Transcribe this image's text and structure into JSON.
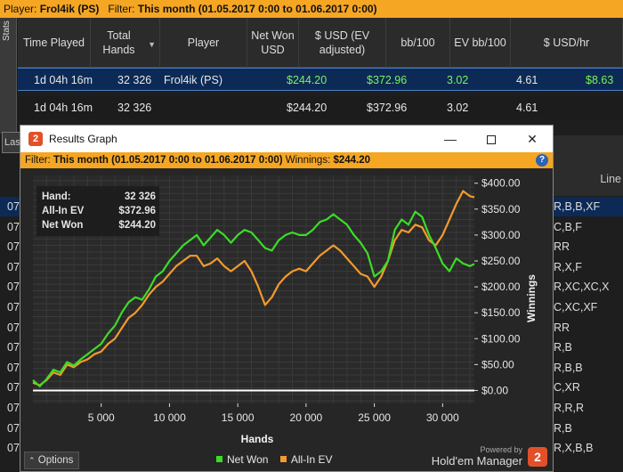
{
  "player_bar": {
    "player_label": "Player:",
    "player_name": "Frol4ik (PS)",
    "filter_label": "Filter:",
    "filter_value": "This month (01.05.2017 0:00 to 01.06.2017 0:00)"
  },
  "stats_tab_label": "Stats",
  "stats_table": {
    "headers": [
      "Time Played",
      "Total Hands",
      "Player",
      "Net Won USD",
      "$ USD (EV adjusted)",
      "bb/100",
      "EV bb/100",
      "$ USD/hr"
    ],
    "row1": [
      "1d 04h 16m",
      "32 326",
      "Frol4ik (PS)",
      "$244.20",
      "$372.96",
      "3.02",
      "4.61",
      "$8.63"
    ],
    "row2": [
      "1d 04h 16m",
      "32 326",
      "",
      "$244.20",
      "$372.96",
      "3.02",
      "4.61",
      ""
    ]
  },
  "left_tab_label": "Las",
  "background_table": {
    "header_right": "Line",
    "left_cells": [
      "07",
      "07",
      "07",
      "07",
      "07",
      "07",
      "07",
      "07",
      "07",
      "07",
      "07",
      "07",
      "07"
    ],
    "right_cells": [
      "R,B,B,XF",
      "C,B,F",
      "RR",
      "R,X,F",
      "R,XC,XC,X",
      "C,XC,XF",
      "RR",
      "R,B",
      "R,B,B",
      "C,XR",
      "R,R,R",
      "R,B",
      "R,X,B,B"
    ]
  },
  "results_window": {
    "title": "Results Graph",
    "filter_label": "Filter:",
    "filter_value": "This month (01.05.2017 0:00 to 01.06.2017 0:00)",
    "winnings_label": "Winnings:",
    "winnings_value": "$244.20",
    "stat_box": [
      {
        "label": "Hand:",
        "value": "32 326"
      },
      {
        "label": "All-In EV",
        "value": "$372.96"
      },
      {
        "label": "Net Won",
        "value": "$244.20"
      }
    ],
    "options_label": "Options",
    "powered_by": "Powered by",
    "brand_name": "Hold'em Manager",
    "brand_logo": "2"
  },
  "chart_data": {
    "type": "line",
    "title": "",
    "xlabel": "Hands",
    "ylabel": "Winnings",
    "xlim": [
      0,
      32326
    ],
    "ylim": [
      -25,
      415
    ],
    "x_ticks": [
      5000,
      10000,
      15000,
      20000,
      25000,
      30000
    ],
    "x_tick_labels": [
      "5 000",
      "10 000",
      "15 000",
      "20 000",
      "25 000",
      "30 000"
    ],
    "y_ticks": [
      0,
      50,
      100,
      150,
      200,
      250,
      300,
      350,
      400
    ],
    "y_tick_labels": [
      "$0.00",
      "$50.00",
      "$100.00",
      "$150.00",
      "$200.00",
      "$250.00",
      "$300.00",
      "$350.00",
      "$400.00"
    ],
    "grid": true,
    "legend": "bottom-center",
    "series": [
      {
        "name": "Net Won",
        "color": "#3cdc28",
        "x": [
          0,
          500,
          1000,
          1500,
          2000,
          2500,
          3000,
          3500,
          4000,
          4500,
          5000,
          5500,
          6000,
          6500,
          7000,
          7500,
          8000,
          8500,
          9000,
          9500,
          10000,
          10500,
          11000,
          11500,
          12000,
          12500,
          13000,
          13500,
          14000,
          14500,
          15000,
          15500,
          16000,
          16500,
          17000,
          17500,
          18000,
          18500,
          19000,
          19500,
          20000,
          20500,
          21000,
          21500,
          22000,
          22500,
          23000,
          23500,
          24000,
          24500,
          25000,
          25500,
          26000,
          26500,
          27000,
          27500,
          28000,
          28500,
          29000,
          29500,
          30000,
          30500,
          31000,
          31500,
          32000,
          32326
        ],
        "y": [
          20,
          8,
          22,
          40,
          35,
          55,
          48,
          60,
          70,
          80,
          90,
          110,
          125,
          150,
          170,
          180,
          175,
          195,
          220,
          230,
          250,
          265,
          280,
          290,
          300,
          280,
          295,
          310,
          300,
          285,
          300,
          310,
          305,
          290,
          275,
          270,
          290,
          300,
          305,
          300,
          300,
          310,
          325,
          330,
          340,
          330,
          320,
          300,
          285,
          265,
          220,
          230,
          250,
          310,
          330,
          320,
          345,
          335,
          300,
          275,
          245,
          230,
          255,
          245,
          240,
          244.2
        ]
      },
      {
        "name": "All-In EV",
        "color": "#f39a2c",
        "x": [
          0,
          500,
          1000,
          1500,
          2000,
          2500,
          3000,
          3500,
          4000,
          4500,
          5000,
          5500,
          6000,
          6500,
          7000,
          7500,
          8000,
          8500,
          9000,
          9500,
          10000,
          10500,
          11000,
          11500,
          12000,
          12500,
          13000,
          13500,
          14000,
          14500,
          15000,
          15500,
          16000,
          16500,
          17000,
          17500,
          18000,
          18500,
          19000,
          19500,
          20000,
          20500,
          21000,
          21500,
          22000,
          22500,
          23000,
          23500,
          24000,
          24500,
          25000,
          25500,
          26000,
          26500,
          27000,
          27500,
          28000,
          28500,
          29000,
          29500,
          30000,
          30500,
          31000,
          31500,
          32000,
          32326
        ],
        "y": [
          15,
          10,
          20,
          35,
          30,
          50,
          45,
          55,
          60,
          70,
          75,
          90,
          100,
          120,
          140,
          150,
          165,
          185,
          200,
          210,
          225,
          240,
          250,
          260,
          260,
          240,
          245,
          255,
          240,
          230,
          240,
          250,
          230,
          200,
          165,
          180,
          205,
          220,
          230,
          235,
          230,
          245,
          260,
          270,
          280,
          270,
          255,
          240,
          225,
          220,
          200,
          220,
          250,
          290,
          310,
          305,
          320,
          315,
          290,
          280,
          300,
          330,
          360,
          385,
          375,
          372.96
        ]
      },
      {
        "name": "",
        "color": "#ffffff",
        "x": [
          0,
          32326
        ],
        "y": [
          0,
          0
        ]
      }
    ]
  }
}
